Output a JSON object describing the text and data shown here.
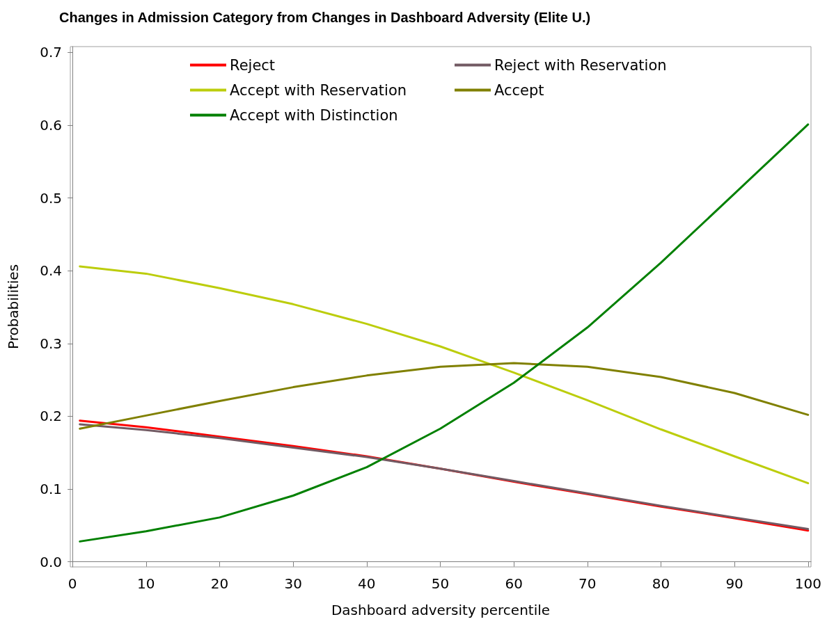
{
  "chart_data": {
    "type": "line",
    "title": "Changes in Admission Category from Changes in Dashboard Adversity (Elite U.)",
    "xlabel": "Dashboard adversity percentile",
    "ylabel": "Probabilities",
    "x": [
      1,
      10,
      20,
      30,
      40,
      50,
      60,
      70,
      80,
      90,
      100
    ],
    "series": [
      {
        "name": "Reject",
        "color": "#ff0000",
        "values": [
          0.194,
          0.185,
          0.172,
          0.159,
          0.145,
          0.128,
          0.11,
          0.093,
          0.076,
          0.06,
          0.043
        ]
      },
      {
        "name": "Reject with Reservation",
        "color": "#725a63",
        "values": [
          0.189,
          0.181,
          0.17,
          0.157,
          0.144,
          0.128,
          0.111,
          0.094,
          0.077,
          0.061,
          0.045
        ]
      },
      {
        "name": "Accept with Reservation",
        "color": "#bccd0c",
        "values": [
          0.406,
          0.396,
          0.376,
          0.354,
          0.327,
          0.296,
          0.26,
          0.222,
          0.182,
          0.145,
          0.108
        ]
      },
      {
        "name": "Accept",
        "color": "#808000",
        "values": [
          0.183,
          0.201,
          0.221,
          0.24,
          0.256,
          0.268,
          0.273,
          0.268,
          0.254,
          0.232,
          0.202
        ]
      },
      {
        "name": "Accept with Distinction",
        "color": "#008000",
        "values": [
          0.028,
          0.042,
          0.061,
          0.091,
          0.13,
          0.183,
          0.246,
          0.322,
          0.411,
          0.506,
          0.601
        ]
      }
    ],
    "xlim": [
      -0.3,
      100.4
    ],
    "xticks": [
      0,
      10,
      20,
      30,
      40,
      50,
      60,
      70,
      80,
      90,
      100
    ],
    "ylim": [
      -0.007,
      0.708
    ],
    "yticks": [
      {
        "value": 0,
        "label": "0.0"
      },
      0.1,
      0.2,
      0.3,
      0.4,
      0.5,
      0.6,
      0.7
    ],
    "legend": "top",
    "marker": "none",
    "line_style": "solid"
  }
}
